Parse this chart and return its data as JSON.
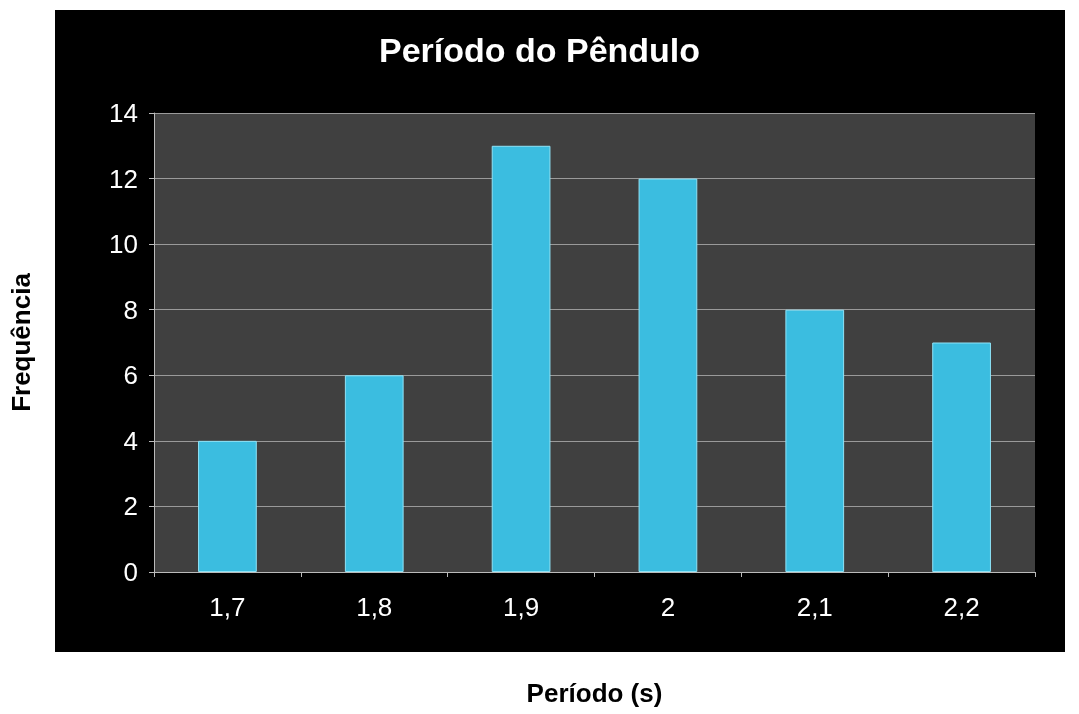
{
  "chart_data": {
    "type": "bar",
    "title": "Período do Pêndulo",
    "xlabel": "Período (s)",
    "ylabel": "Frequência",
    "categories": [
      "1,7",
      "1,8",
      "1,9",
      "2",
      "2,1",
      "2,2"
    ],
    "values": [
      4,
      6,
      13,
      12,
      8,
      7
    ],
    "color": "#3bbde0",
    "ylim": [
      0,
      14
    ],
    "yticks": [
      0,
      2,
      4,
      6,
      8,
      10,
      12,
      14
    ],
    "grid": "y"
  }
}
